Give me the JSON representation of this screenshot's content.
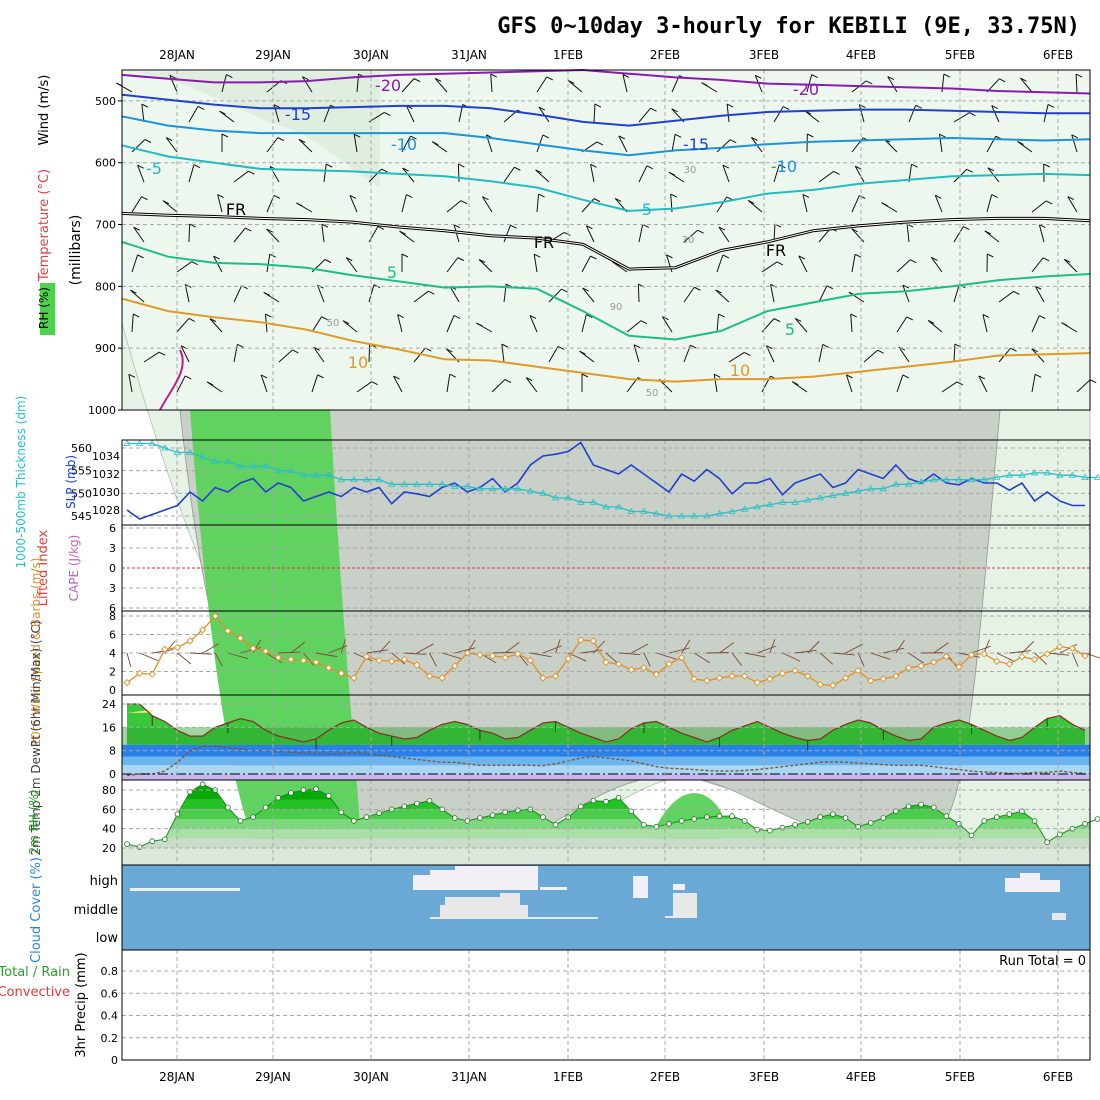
{
  "title": "GFS 0~10day 3-hourly for KEBILI (9E, 33.75N)",
  "dates": [
    "28JAN",
    "29JAN",
    "30JAN",
    "31JAN",
    "1FEB",
    "2FEB",
    "3FEB",
    "4FEB",
    "5FEB",
    "6FEB"
  ],
  "colors": {
    "grid": "#a8a8a8",
    "rh_green": "#5fd25f",
    "rh_gray": "#c8d0c8",
    "rh_light": "#e6f2e6",
    "slp": "#1f3fcf",
    "thickness": "#2bbfc6",
    "wind": "#e0902a",
    "cloud": "#6aa9d6",
    "cloud_white": "#f2f0f6",
    "rh2_green": "#22c322",
    "temp_top": "#2bbd2b"
  },
  "chart_data": [
    {
      "type": "heatmap",
      "panel": "vertical cross-section",
      "ylabel_parts": [
        "RH (%)",
        "Temperature (°C)",
        "Wind (m/s)"
      ],
      "yunits": "(millibars)",
      "yticks": [
        500,
        600,
        700,
        800,
        900,
        1000
      ],
      "ylim": [
        450,
        1000
      ],
      "contour_labels": [
        "-20",
        "-20",
        "-15",
        "-15",
        "-10",
        "-10",
        "-5",
        "-5",
        "FR",
        "FR",
        "FR",
        "5",
        "5",
        "10",
        "10",
        "30",
        "30",
        "50",
        "50",
        "90"
      ],
      "isotherms": [
        {
          "label": "-20",
          "color": "#8a1ab4",
          "p": [
            458,
            464,
            470,
            470,
            468,
            462,
            458,
            456,
            454,
            452,
            450,
            456,
            462,
            466,
            472,
            474,
            476,
            478,
            480,
            484,
            486,
            488
          ]
        },
        {
          "label": "-15",
          "color": "#2040d0",
          "p": [
            490,
            498,
            506,
            512,
            512,
            510,
            508,
            508,
            512,
            522,
            534,
            540,
            532,
            524,
            518,
            516,
            514,
            514,
            516,
            518,
            520,
            520
          ]
        },
        {
          "label": "-10",
          "color": "#1a95d8",
          "p": [
            525,
            540,
            548,
            552,
            552,
            552,
            552,
            552,
            560,
            570,
            580,
            588,
            580,
            576,
            570,
            566,
            564,
            562,
            560,
            562,
            564,
            562
          ]
        },
        {
          "label": "-5",
          "color": "#20bcc2",
          "p": [
            572,
            590,
            600,
            610,
            612,
            614,
            618,
            622,
            630,
            640,
            660,
            678,
            674,
            664,
            650,
            644,
            634,
            628,
            622,
            620,
            618,
            620
          ]
        },
        {
          "label": "FR",
          "color": "#000000",
          "p": [
            682,
            685,
            687,
            690,
            692,
            696,
            704,
            710,
            718,
            722,
            732,
            772,
            770,
            742,
            728,
            710,
            702,
            696,
            692,
            690,
            690,
            694
          ]
        },
        {
          "label": "5",
          "color": "#1cbd8a",
          "p": [
            728,
            752,
            762,
            764,
            770,
            782,
            792,
            802,
            800,
            804,
            840,
            880,
            886,
            872,
            840,
            826,
            812,
            808,
            800,
            790,
            784,
            780
          ]
        },
        {
          "label": "10",
          "color": "#e09a28",
          "p": [
            820,
            840,
            850,
            858,
            870,
            888,
            902,
            918,
            920,
            930,
            940,
            950,
            954,
            950,
            950,
            946,
            938,
            930,
            922,
            912,
            910,
            908
          ]
        }
      ]
    },
    {
      "type": "line",
      "panel": "pressure",
      "ylabel_left": "1000-500mb Thickness (dm)",
      "ylabel_right": "SLP (mb)",
      "yticks_left": [
        545,
        550,
        555,
        560
      ],
      "yticks_right": [
        1028,
        1030,
        1032,
        1034
      ],
      "series": [
        {
          "name": "SLP (mb)",
          "color": "#1f3fcf",
          "axis": "right",
          "values": [
            1028,
            1027,
            1027.5,
            1028,
            1028.5,
            1030,
            1029,
            1030.5,
            1030,
            1031,
            1031.5,
            1030,
            1031,
            1030.5,
            1029,
            1029.5,
            1030,
            1029.5,
            1030.5,
            1030,
            1030.5,
            1028.7,
            1030,
            1029.8,
            1029.5,
            1030.5,
            1031,
            1030,
            1030.5,
            1031.5,
            1030,
            1031,
            1033,
            1034,
            1034.2,
            1034.5,
            1035.5,
            1033,
            1032.5,
            1032,
            1033,
            1032,
            1031,
            1030,
            1032,
            1031.2,
            1032.5,
            1031.5,
            1029.8,
            1031,
            1031,
            1031.5,
            1029.7,
            1031,
            1031.5,
            1032,
            1030.5,
            1031,
            1032.5,
            1032,
            1031.5,
            1033,
            1031.5,
            1031,
            1032,
            1031,
            1030.8,
            1031.5,
            1031,
            1031,
            1030.2,
            1031,
            1029,
            1030,
            1029,
            1028.5,
            1028.5
          ]
        },
        {
          "name": "1000-500mb Thickness (dm)",
          "color": "#2bbfc6",
          "axis": "left",
          "values": [
            561,
            561,
            561,
            560,
            559,
            559,
            558,
            557,
            557,
            556,
            556,
            556,
            555,
            555,
            554,
            554,
            554,
            553,
            553,
            553,
            553,
            552,
            552,
            552,
            552,
            552,
            551.5,
            551.5,
            551,
            551,
            551,
            551,
            550.5,
            550,
            549,
            549,
            548,
            548,
            547,
            547,
            546,
            546,
            545.5,
            545,
            545,
            545,
            545,
            545.5,
            546,
            546.5,
            547,
            547.5,
            548,
            548,
            548.5,
            549,
            549.5,
            550,
            550.5,
            551,
            551,
            552,
            552,
            552.5,
            553,
            553,
            553,
            553,
            553,
            553.5,
            554,
            554,
            554.5,
            554.5,
            554,
            554,
            553.5,
            553.5
          ]
        }
      ]
    },
    {
      "type": "line",
      "panel": "stability",
      "ylabel_left": "Lifted Index",
      "ylabel_right": "CAPE (J/kg)",
      "yticks": [
        6,
        3,
        0,
        -3,
        -6
      ],
      "yticks_labels": [
        "6",
        "3",
        "0",
        "3",
        "6"
      ],
      "series": []
    },
    {
      "type": "line",
      "panel": "surface wind",
      "ylabel": "10m Wind Speed & Barbs (m/s)",
      "yticks": [
        0,
        2,
        4,
        6,
        8
      ],
      "ylim": [
        0,
        8.5
      ],
      "series": [
        {
          "name": "10m Wind Speed",
          "color": "#e0902a",
          "values": [
            0.8,
            1.8,
            1.7,
            4.4,
            4.6,
            5.3,
            6.5,
            8,
            6.4,
            5.6,
            4.5,
            4.2,
            3.5,
            3.3,
            3.2,
            3,
            2.4,
            1.8,
            1.3,
            3.6,
            3.2,
            3.1,
            3.3,
            2.7,
            1.5,
            1.3,
            2.6,
            4,
            3.8,
            3.7,
            3.5,
            3.9,
            3.2,
            1.3,
            1.5,
            3.4,
            5.4,
            5.3,
            3,
            2.8,
            2.2,
            2.4,
            1.7,
            2.8,
            3.5,
            1.2,
            1,
            1.3,
            1.5,
            1.5,
            0.8,
            1.2,
            1.8,
            2.1,
            1.5,
            0.6,
            0.5,
            1.3,
            2.1,
            1,
            1.2,
            1.5,
            2.4,
            2.6,
            3,
            3.6,
            2.5,
            3.8,
            3.9,
            3.1,
            2.8,
            3.6,
            3.3,
            3.9,
            4.7,
            4.5,
            3.7
          ]
        }
      ]
    },
    {
      "type": "area",
      "panel": "temperature",
      "ylabel": "2m Temp 2m DewPt (6hr Min/Max) (°C)",
      "yticks": [
        0,
        8,
        16,
        24
      ],
      "ylim": [
        -1,
        25.5
      ],
      "series": [
        {
          "name": "2m Temp",
          "color": "#2bbd2b",
          "values": [
            24,
            24,
            20,
            18,
            15,
            13,
            13,
            16,
            17.5,
            19,
            18,
            15,
            13,
            12,
            11,
            12,
            15,
            17.5,
            18.5,
            16,
            14,
            13,
            12,
            12.5,
            15,
            17,
            18,
            17,
            15,
            14,
            12,
            12.5,
            15,
            17.5,
            18,
            16,
            14,
            12.5,
            11,
            12,
            15.5,
            17.5,
            18,
            16,
            14,
            12.5,
            11,
            12.5,
            15,
            16.5,
            18,
            16,
            14,
            12.5,
            11.5,
            12,
            15,
            17,
            18.5,
            17.5,
            15,
            13,
            11.5,
            12,
            16,
            17.5,
            18.5,
            17,
            15,
            13,
            11.5,
            12.5,
            16,
            19,
            20,
            17,
            15
          ]
        },
        {
          "name": "2m DewPt",
          "color": "#7a5a3a",
          "values": [
            -0.5,
            0,
            0,
            1,
            4,
            8,
            9.5,
            9.5,
            9,
            8.5,
            8,
            8,
            7.7,
            7.5,
            7.2,
            7,
            6.8,
            7,
            7.3,
            7,
            6.5,
            6,
            5.5,
            5,
            4.5,
            4,
            4,
            3.5,
            3,
            3,
            3,
            3,
            3,
            2.8,
            3.5,
            4.5,
            5.5,
            6,
            5.5,
            5,
            4.5,
            3.5,
            2.5,
            2,
            1.8,
            1.5,
            1.2,
            1,
            1,
            1.2,
            1.5,
            2,
            2.5,
            3,
            3.5,
            4,
            4.2,
            4,
            3.8,
            3.5,
            3.2,
            3,
            3,
            3,
            2.5,
            2,
            1.5,
            1,
            0.7,
            0.5,
            0.2,
            0.2,
            0.5,
            0.5,
            1,
            0.5,
            0.2
          ]
        }
      ]
    },
    {
      "type": "area",
      "panel": "relative humidity",
      "ylabel": "2m RH (%)",
      "yticks": [
        20,
        40,
        60,
        80
      ],
      "ylim": [
        10,
        92
      ],
      "series": [
        {
          "name": "2m RH",
          "color": "#22c322",
          "values": [
            24,
            21,
            27,
            29,
            55,
            78,
            86,
            80,
            62,
            48,
            52,
            62,
            72,
            77,
            80,
            81,
            74,
            57,
            48,
            52,
            56,
            60,
            63,
            66,
            69,
            60,
            51,
            48,
            51,
            54,
            57,
            59,
            60,
            52,
            44,
            52,
            63,
            69,
            68,
            72,
            58,
            44,
            42,
            45,
            48,
            50,
            52,
            53,
            53,
            48,
            39,
            38,
            41,
            44,
            47,
            52,
            55,
            51,
            42,
            46,
            51,
            58,
            63,
            65,
            62,
            53,
            45,
            33,
            48,
            52,
            55,
            58,
            48,
            26,
            34,
            40,
            45,
            50
          ]
        }
      ]
    },
    {
      "type": "heatmap",
      "panel": "cloud cover",
      "ylabel": "Cloud Cover (%)",
      "ytick_labels": [
        "high",
        "middle",
        "low"
      ]
    },
    {
      "type": "bar",
      "panel": "precipitation",
      "ylabel": "3hr Precip (mm)",
      "legend": [
        "Total / Rain",
        "Convective"
      ],
      "yticks": [
        0,
        0.2,
        0.4,
        0.6,
        0.8
      ],
      "ylim": [
        0,
        0.95
      ],
      "annotation": "Run Total = 0",
      "values": []
    }
  ]
}
